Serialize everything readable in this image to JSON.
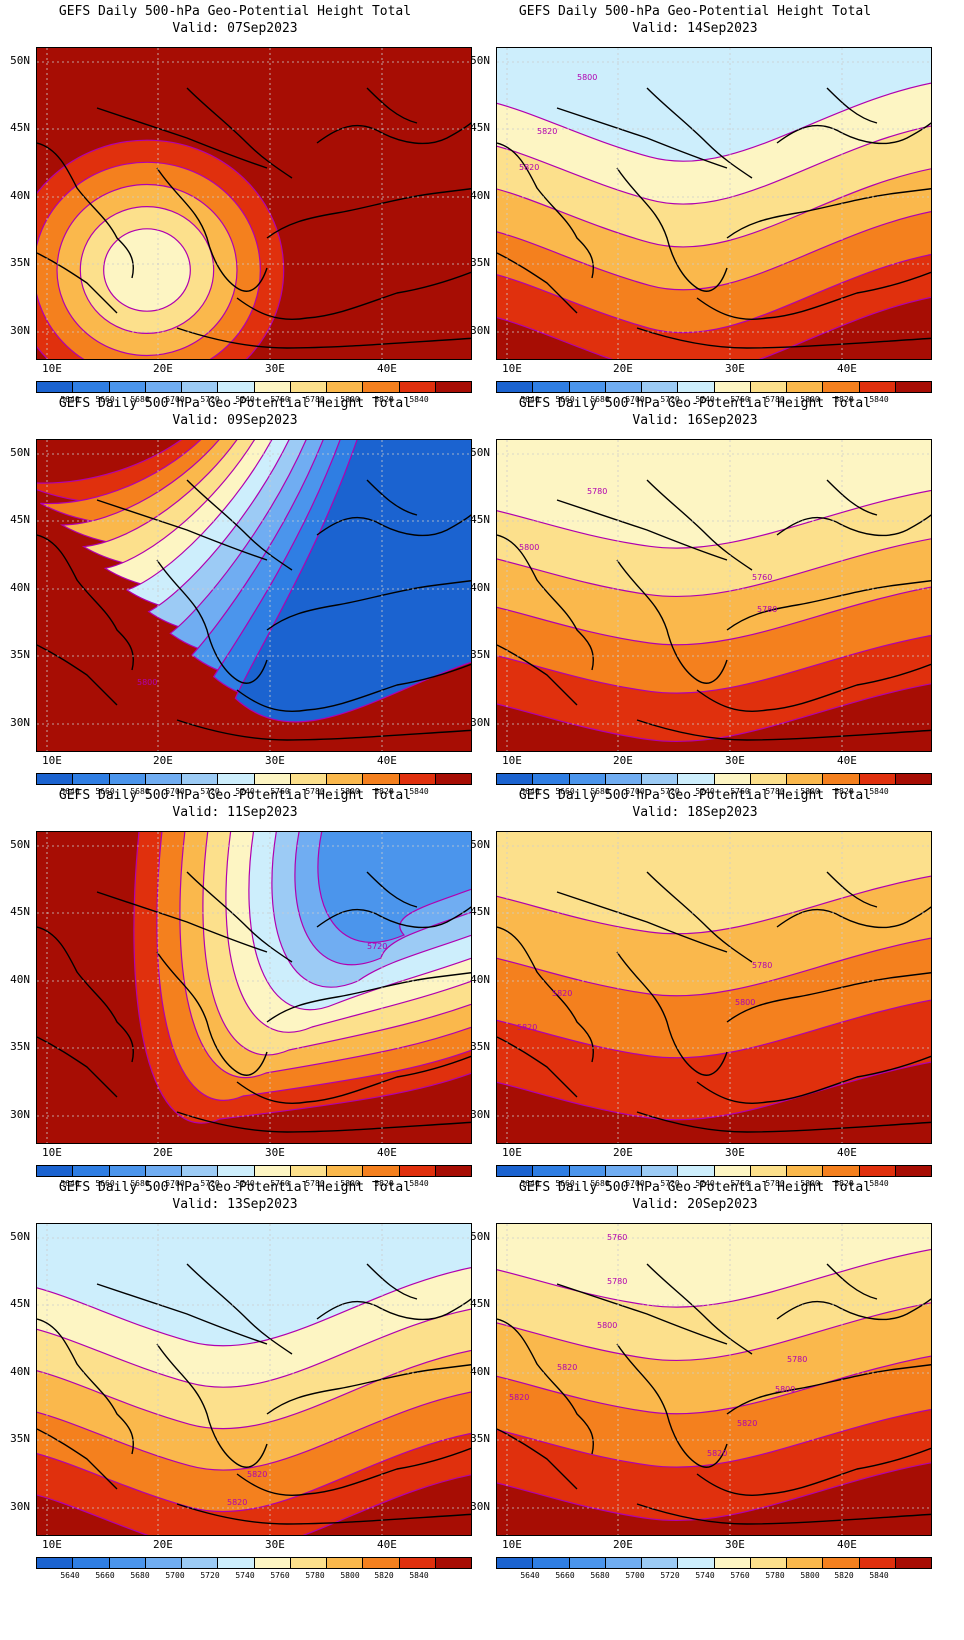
{
  "colorbar": {
    "labels": [
      "5640",
      "5660",
      "5680",
      "5700",
      "5720",
      "5740",
      "5760",
      "5780",
      "5800",
      "5820",
      "5840"
    ],
    "colors": [
      "#1b63d0",
      "#2f7ee3",
      "#4b95ec",
      "#70adf2",
      "#9ccbf5",
      "#cdeefc",
      "#fdf5c3",
      "#fce08c",
      "#fab84c",
      "#f4801e",
      "#e0300d",
      "#a70d04"
    ]
  },
  "contour_color": "#b000b0",
  "latitudes": [
    "50N",
    "45N",
    "40N",
    "35N",
    "30N"
  ],
  "longitudes": [
    "10E",
    "20E",
    "30E",
    "40E"
  ],
  "panels": [
    {
      "title": "GEFS Daily 500-hPa Geo-Potential Height Total",
      "valid": "Valid: 07Sep2023",
      "contour_labels": []
    },
    {
      "title": "GEFS Daily 500-hPa Geo-Potential Height Total",
      "valid": "Valid: 14Sep2023",
      "contour_labels": [
        "5800",
        "5820",
        "5820"
      ]
    },
    {
      "title": "GEFS Daily 500-hPa Geo-Potential Height Total",
      "valid": "Valid: 09Sep2023",
      "contour_labels": [
        "5800"
      ]
    },
    {
      "title": "GEFS Daily 500-hPa Geo-Potential Height Total",
      "valid": "Valid: 16Sep2023",
      "contour_labels": [
        "5780",
        "5800",
        "5760",
        "5780"
      ]
    },
    {
      "title": "GEFS Daily 500-hPa Geo-Potential Height Total",
      "valid": "Valid: 11Sep2023",
      "contour_labels": [
        "5720"
      ]
    },
    {
      "title": "GEFS Daily 500-hPa Geo-Potential Height Total",
      "valid": "Valid: 18Sep2023",
      "contour_labels": [
        "5780",
        "5800",
        "5820",
        "5820"
      ]
    },
    {
      "title": "GEFS Daily 500-hPa Geo-Potential Height Total",
      "valid": "Valid: 13Sep2023",
      "contour_labels": [
        "5820",
        "5820"
      ]
    },
    {
      "title": "GEFS Daily 500-hPa Geo-Potential Height Total",
      "valid": "Valid: 20Sep2023",
      "contour_labels": [
        "5760",
        "5780",
        "5800",
        "5780",
        "5800",
        "5820",
        "5820",
        "5820",
        "5820"
      ]
    }
  ]
}
